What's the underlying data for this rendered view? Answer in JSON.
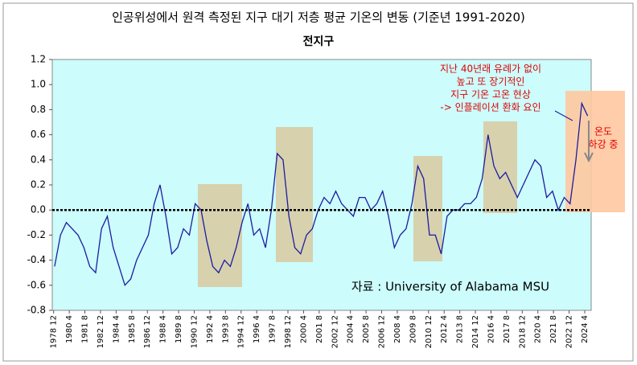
{
  "chart_data": {
    "type": "line",
    "title": "인공위성에서 원격 측정된 지구 대기 저층 평균 기온의 변동 (기준년 1991-2020)",
    "subtitle": "전지구",
    "annotations": [
      "지난 40년래 유례가 없이",
      "높고 또 장기적인",
      "지구 기온 고온 현상",
      "-> 인플레이션 환화 요인",
      "온도",
      "하강 중"
    ],
    "source": "자료 : University of Alabama MSU",
    "xlim": [
      1978.8,
      2024.8
    ],
    "xticks": [
      {
        "value": 1978.917,
        "label": "1978 12"
      },
      {
        "value": 1980.25,
        "label": "1980 4"
      },
      {
        "value": 1981.583,
        "label": "1981 8"
      },
      {
        "value": 1982.917,
        "label": "1982 12"
      },
      {
        "value": 1984.25,
        "label": "1984 4"
      },
      {
        "value": 1985.583,
        "label": "1985 8"
      },
      {
        "value": 1986.917,
        "label": "1986 12"
      },
      {
        "value": 1988.25,
        "label": "1988 4"
      },
      {
        "value": 1989.583,
        "label": "1989 8"
      },
      {
        "value": 1990.917,
        "label": "1990 12"
      },
      {
        "value": 1992.25,
        "label": "1992 4"
      },
      {
        "value": 1993.583,
        "label": "1993 8"
      },
      {
        "value": 1994.917,
        "label": "1994 12"
      },
      {
        "value": 1996.25,
        "label": "1996 4"
      },
      {
        "value": 1997.583,
        "label": "1997 8"
      },
      {
        "value": 1998.917,
        "label": "1998 12"
      },
      {
        "value": 2000.25,
        "label": "2000 4"
      },
      {
        "value": 2001.583,
        "label": "2001 8"
      },
      {
        "value": 2002.917,
        "label": "2002 12"
      },
      {
        "value": 2004.25,
        "label": "2004 4"
      },
      {
        "value": 2005.583,
        "label": "2005 8"
      },
      {
        "value": 2006.917,
        "label": "2006 12"
      },
      {
        "value": 2008.25,
        "label": "2008 4"
      },
      {
        "value": 2009.583,
        "label": "2009 8"
      },
      {
        "value": 2010.917,
        "label": "2010 12"
      },
      {
        "value": 2012.25,
        "label": "2012 4"
      },
      {
        "value": 2013.583,
        "label": "2013 8"
      },
      {
        "value": 2014.917,
        "label": "2014 12"
      },
      {
        "value": 2016.25,
        "label": "2016 4"
      },
      {
        "value": 2017.583,
        "label": "2017 8"
      },
      {
        "value": 2018.917,
        "label": "2018 12"
      },
      {
        "value": 2020.25,
        "label": "2020 4"
      },
      {
        "value": 2021.583,
        "label": "2021 8"
      },
      {
        "value": 2022.917,
        "label": "2022 12"
      },
      {
        "value": 2024.25,
        "label": "2024 4"
      }
    ],
    "ylim": [
      -0.8,
      1.2
    ],
    "yticks": [
      -0.8,
      -0.6,
      -0.4,
      -0.2,
      {
        "value": 0,
        "label": "0.0"
      },
      0.2,
      0.4,
      0.6,
      0.8,
      {
        "value": 1,
        "label": "1.0"
      },
      1.2
    ],
    "x": [
      1979,
      1979.5,
      1980,
      1980.5,
      1981,
      1981.5,
      1982,
      1982.5,
      1983,
      1983.5,
      1984,
      1984.5,
      1985,
      1985.5,
      1986,
      1986.5,
      1987,
      1987.5,
      1988,
      1988.5,
      1989,
      1989.5,
      1990,
      1990.5,
      1991,
      1991.5,
      1992,
      1992.5,
      1993,
      1993.5,
      1994,
      1994.5,
      1995,
      1995.5,
      1996,
      1996.5,
      1997,
      1997.5,
      1998,
      1998.5,
      1999,
      1999.5,
      2000,
      2000.5,
      2001,
      2001.5,
      2002,
      2002.5,
      2003,
      2003.5,
      2004,
      2004.5,
      2005,
      2005.5,
      2006,
      2006.5,
      2007,
      2007.5,
      2008,
      2008.5,
      2009,
      2009.5,
      2010,
      2010.5,
      2011,
      2011.5,
      2012,
      2012.5,
      2013,
      2013.5,
      2014,
      2014.5,
      2015,
      2015.5,
      2016,
      2016.5,
      2017,
      2017.5,
      2018,
      2018.5,
      2019,
      2019.5,
      2020,
      2020.5,
      2021,
      2021.5,
      2022,
      2022.5,
      2023,
      2023.5,
      2024,
      2024.5
    ],
    "series": [
      {
        "color": "#1c1ca0",
        "values": [
          -0.45,
          -0.2,
          -0.1,
          -0.15,
          -0.2,
          -0.3,
          -0.45,
          -0.5,
          -0.15,
          -0.05,
          -0.3,
          -0.45,
          -0.6,
          -0.55,
          -0.4,
          -0.3,
          -0.2,
          0.05,
          0.2,
          -0.05,
          -0.35,
          -0.3,
          -0.15,
          -0.2,
          0.05,
          0,
          -0.25,
          -0.45,
          -0.5,
          -0.4,
          -0.45,
          -0.3,
          -0.1,
          0.05,
          -0.2,
          -0.15,
          -0.3,
          0,
          0.45,
          0.4,
          -0.05,
          -0.3,
          -0.35,
          -0.2,
          -0.15,
          0,
          0.1,
          0.05,
          0.15,
          0.05,
          0,
          -0.05,
          0.1,
          0.1,
          0,
          0.05,
          0.15,
          -0.05,
          -0.3,
          -0.2,
          -0.15,
          0.05,
          0.35,
          0.25,
          -0.2,
          -0.2,
          -0.35,
          -0.05,
          0,
          0,
          0.05,
          0.05,
          0.1,
          0.25,
          0.6,
          0.35,
          0.25,
          0.3,
          0.2,
          0.1,
          0.2,
          0.3,
          0.4,
          0.35,
          0.1,
          0.15,
          0,
          0.1,
          0.05,
          0.4,
          0.85,
          0.75
        ]
      }
    ]
  }
}
